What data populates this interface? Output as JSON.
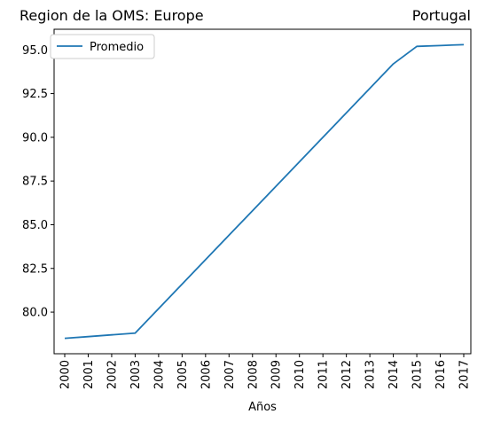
{
  "chart_data": {
    "type": "line",
    "title_left": "Region de la OMS: Europe",
    "title_right": "Portugal",
    "xlabel": "Años",
    "ylabel": "",
    "categories": [
      "2000",
      "2001",
      "2002",
      "2003",
      "2004",
      "2005",
      "2006",
      "2007",
      "2008",
      "2009",
      "2010",
      "2011",
      "2012",
      "2013",
      "2014",
      "2015",
      "2016",
      "2017"
    ],
    "series": [
      {
        "name": "Promedio",
        "color": "#1f77b4",
        "values": [
          78.5,
          78.6,
          78.7,
          78.8,
          80.2,
          81.6,
          83.0,
          84.4,
          85.8,
          87.2,
          88.6,
          90.0,
          91.4,
          92.8,
          94.2,
          95.2,
          95.25,
          95.3
        ]
      }
    ],
    "ylim": [
      77.62,
      96.18
    ],
    "yticks": [
      "80.0",
      "82.5",
      "85.0",
      "87.5",
      "90.0",
      "92.5",
      "95.0"
    ],
    "legend_position": "upper-left",
    "grid": false
  }
}
